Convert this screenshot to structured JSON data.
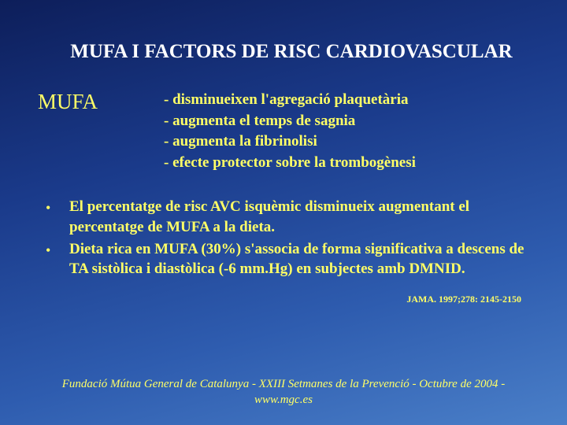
{
  "colors": {
    "background_gradient_start": "#0d1e5a",
    "background_gradient_mid1": "#1a3a8a",
    "background_gradient_mid2": "#2e5caf",
    "background_gradient_end": "#4a7fc8",
    "title_color": "#ffffff",
    "body_color": "#ffff66"
  },
  "typography": {
    "font_family": "Times New Roman",
    "title_fontsize": 25,
    "section_label_fontsize": 27,
    "body_fontsize": 19,
    "citation_fontsize": 12,
    "footer_fontsize": 15
  },
  "title": "MUFA I FACTORS DE RISC CARDIOVASCULAR",
  "section": {
    "label": "MUFA",
    "items": [
      "- disminueixen l'agregació plaquetària",
      "- augmenta el temps de sagnia",
      "- augmenta la fibrinolisi",
      "- efecte protector sobre la trombogènesi"
    ]
  },
  "bullets": [
    "El percentatge de risc AVC isquèmic disminueix augmentant el percentatge de MUFA a la dieta.",
    "Dieta rica en MUFA (30%) s'associa de forma significativa a descens de TA sistòlica i diastòlica (-6 mm.Hg) en subjectes amb DMNID."
  ],
  "citation": "JAMA. 1997;278: 2145-2150",
  "footer_line1": "Fundació Mútua General de Catalunya - XXIII Setmanes de la Prevenció - Octubre de 2004 -",
  "footer_line2": "www.mgc.es"
}
